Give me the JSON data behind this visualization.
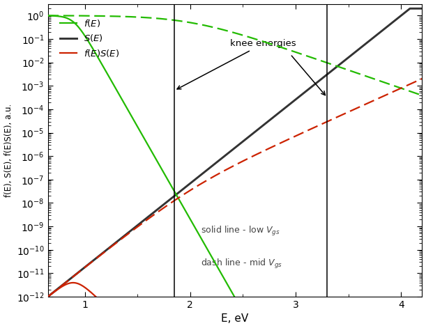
{
  "xlabel": "E, eV",
  "ylabel": "f(E), S(E), f(E)S(E), a.u.",
  "xlim": [
    0.65,
    4.2
  ],
  "knee1": 1.85,
  "knee2": 3.3,
  "color_f": "#22bb00",
  "color_S": "#333333",
  "color_fS": "#cc2200",
  "legend_f": "$f(E)$",
  "legend_S": "$S(E)$",
  "legend_fS": "$f(E)S(E)$",
  "annotation_knee": "knee energies",
  "text_solid": "solid line - low $V_{gs}$",
  "text_dash": "dash line - mid $V_{gs}$"
}
